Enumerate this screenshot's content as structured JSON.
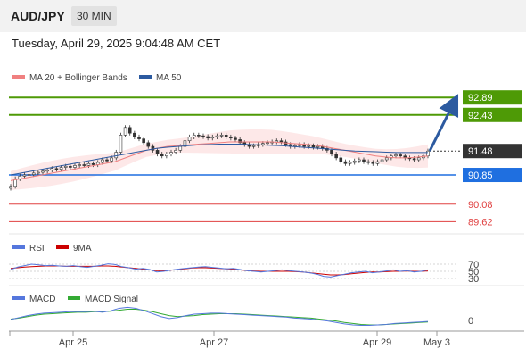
{
  "header": {
    "symbol": "AUD/JPY",
    "timeframe": "30 MIN",
    "datetime": "Tuesday, April 29, 2025 9:04:48 AM CET"
  },
  "colors": {
    "resistance": "#4e9a06",
    "support": "#1f6fe0",
    "red_levels": "#e04040",
    "current": "#333333",
    "bollinger": "#f08080",
    "ma50": "#2c5aa0",
    "rsi": "#5577dd",
    "rsi_ma": "#cc0000",
    "macd": "#5577dd",
    "macd_signal": "#33aa33",
    "arrow": "#2c5aa0"
  },
  "chart_data": [
    {
      "type": "candlestick",
      "title": "",
      "legend": [
        {
          "name": "MA 20 + Bollinger Bands",
          "color": "#f08080"
        },
        {
          "name": "MA 50",
          "color": "#2c5aa0"
        }
      ],
      "legend_placement": "top-left",
      "x_ticks": [
        "Apr 25",
        "Apr 27",
        "Apr 29",
        "May 3"
      ],
      "y_range": [
        89.3,
        93.2
      ],
      "current_price": "91.48",
      "levels": [
        {
          "value": "92.89",
          "kind": "resistance"
        },
        {
          "value": "92.43",
          "kind": "resistance"
        },
        {
          "value": "90.85",
          "kind": "support"
        },
        {
          "value": "90.08",
          "kind": "minor"
        },
        {
          "value": "89.62",
          "kind": "minor"
        }
      ],
      "target": {
        "from": 91.48,
        "to": 92.89
      },
      "close_series": [
        90.55,
        90.75,
        90.82,
        90.85,
        90.86,
        90.9,
        90.92,
        90.95,
        90.98,
        91.02,
        91.0,
        91.05,
        91.08,
        91.05,
        91.1,
        91.12,
        91.1,
        91.15,
        91.12,
        91.18,
        91.25,
        91.22,
        91.3,
        91.45,
        91.9,
        92.1,
        91.95,
        91.85,
        91.8,
        91.7,
        91.6,
        91.5,
        91.4,
        91.35,
        91.4,
        91.45,
        91.5,
        91.6,
        91.75,
        91.85,
        91.9,
        91.88,
        91.86,
        91.82,
        91.85,
        91.88,
        91.9,
        91.85,
        91.82,
        91.78,
        91.7,
        91.65,
        91.6,
        91.62,
        91.65,
        91.68,
        91.7,
        91.72,
        91.75,
        91.72,
        91.65,
        91.6,
        91.62,
        91.65,
        91.6,
        91.62,
        91.58,
        91.6,
        91.55,
        91.5,
        91.4,
        91.3,
        91.2,
        91.15,
        91.18,
        91.22,
        91.25,
        91.2,
        91.18,
        91.15,
        91.2,
        91.25,
        91.3,
        91.35,
        91.38,
        91.35,
        91.3,
        91.28,
        91.25,
        91.3,
        91.35,
        91.48
      ],
      "ma20_series": [
        90.7,
        90.75,
        90.8,
        90.85,
        90.9,
        90.95,
        91.0,
        91.05,
        91.1,
        91.15,
        91.2,
        91.3,
        91.4,
        91.5,
        91.55,
        91.6,
        91.62,
        91.64,
        91.66,
        91.68,
        91.7,
        91.72,
        91.72,
        91.72,
        91.72,
        91.72,
        91.7,
        91.68,
        91.66,
        91.64,
        91.6,
        91.55,
        91.5,
        91.45,
        91.4,
        91.35,
        91.32,
        91.3,
        91.3,
        91.32,
        91.35
      ],
      "ma50_series": [
        90.85,
        90.9,
        90.95,
        91.0,
        91.05,
        91.1,
        91.15,
        91.2,
        91.25,
        91.3,
        91.35,
        91.4,
        91.45,
        91.5,
        91.55,
        91.58,
        91.6,
        91.62,
        91.64,
        91.65,
        91.66,
        91.66,
        91.66,
        91.65,
        91.64,
        91.63,
        91.62,
        91.6,
        91.58,
        91.56,
        91.54,
        91.52,
        91.5,
        91.48,
        91.47,
        91.46,
        91.45,
        91.44,
        91.44,
        91.44,
        91.44
      ]
    },
    {
      "type": "line",
      "title": "",
      "legend": [
        {
          "name": "RSI",
          "color": "#5577dd"
        },
        {
          "name": "9MA",
          "color": "#cc0000"
        }
      ],
      "y_ticks": [
        "70",
        "50",
        "30"
      ],
      "y_range": [
        20,
        80
      ],
      "rsi_series": [
        55,
        62,
        66,
        70,
        68,
        66,
        67,
        65,
        64,
        66,
        63,
        61,
        64,
        67,
        71,
        69,
        63,
        60,
        56,
        58,
        55,
        48,
        50,
        53,
        56,
        58,
        60,
        62,
        63,
        61,
        59,
        57,
        58,
        55,
        52,
        50,
        48,
        50,
        52,
        54,
        52,
        50,
        48,
        46,
        42,
        36,
        34,
        38,
        42,
        46,
        48,
        50,
        46,
        48,
        51,
        54,
        50,
        52,
        48,
        50,
        54
      ],
      "ma9_series": [
        58,
        60,
        62,
        63,
        64,
        65,
        65,
        65,
        64,
        64,
        64,
        64,
        64,
        65,
        65,
        64,
        62,
        60,
        58,
        56,
        54,
        52,
        52,
        53,
        55,
        57,
        59,
        60,
        60,
        59,
        58,
        57,
        56,
        54,
        52,
        51,
        50,
        50,
        50,
        50,
        50,
        49,
        48,
        46,
        44,
        42,
        40,
        40,
        41,
        43,
        45,
        47,
        48,
        48,
        49,
        50,
        50,
        51,
        50,
        50,
        51
      ]
    },
    {
      "type": "line",
      "title": "",
      "legend": [
        {
          "name": "MACD",
          "color": "#5577dd"
        },
        {
          "name": "MACD Signal",
          "color": "#33aa33"
        }
      ],
      "y_ticks": [
        "0"
      ],
      "y_range": [
        -0.2,
        0.35
      ],
      "macd_series": [
        0.02,
        0.06,
        0.1,
        0.13,
        0.15,
        0.16,
        0.17,
        0.18,
        0.18,
        0.18,
        0.19,
        0.17,
        0.2,
        0.25,
        0.27,
        0.25,
        0.2,
        0.14,
        0.08,
        0.04,
        0.06,
        0.1,
        0.13,
        0.14,
        0.15,
        0.15,
        0.14,
        0.13,
        0.12,
        0.11,
        0.1,
        0.09,
        0.08,
        0.07,
        0.05,
        0.04,
        0.03,
        0.01,
        -0.01,
        -0.04,
        -0.07,
        -0.09,
        -0.1,
        -0.1,
        -0.09,
        -0.08,
        -0.06,
        -0.05,
        -0.04,
        -0.03,
        -0.02
      ],
      "signal_series": [
        0.03,
        0.05,
        0.08,
        0.11,
        0.13,
        0.14,
        0.15,
        0.16,
        0.17,
        0.17,
        0.18,
        0.18,
        0.19,
        0.21,
        0.23,
        0.23,
        0.21,
        0.18,
        0.14,
        0.1,
        0.08,
        0.09,
        0.1,
        0.12,
        0.13,
        0.14,
        0.14,
        0.14,
        0.13,
        0.12,
        0.11,
        0.1,
        0.09,
        0.08,
        0.07,
        0.06,
        0.05,
        0.03,
        0.01,
        -0.01,
        -0.04,
        -0.06,
        -0.08,
        -0.09,
        -0.09,
        -0.08,
        -0.07,
        -0.06,
        -0.05,
        -0.04,
        -0.03
      ]
    }
  ]
}
